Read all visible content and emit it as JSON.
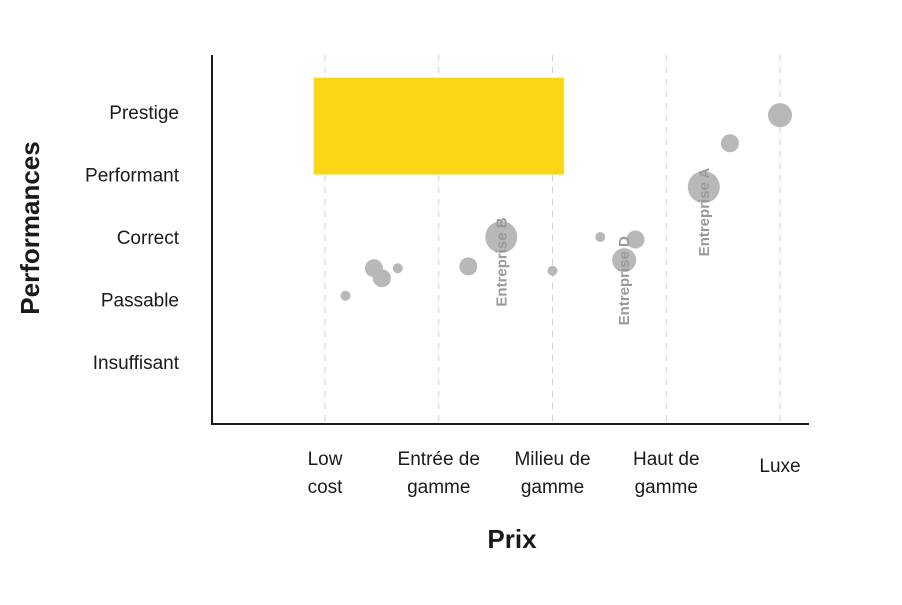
{
  "chart_data": {
    "type": "scatter",
    "title": "",
    "xlabel": "Prix",
    "ylabel": "Performances",
    "x_categories": [
      "Low cost",
      "Entrée de gamme",
      "Milieu de gamme",
      "Haut de gamme",
      "Luxe"
    ],
    "x_tick_lines": [
      [
        "Low",
        "cost"
      ],
      [
        "Entrée de",
        "gamme"
      ],
      [
        "Milieu de",
        "gamme"
      ],
      [
        "Haut de",
        "gamme"
      ],
      [
        "Luxe"
      ]
    ],
    "y_categories": [
      "Insuffisant",
      "Passable",
      "Correct",
      "Performant",
      "Prestige"
    ],
    "xlim": [
      -1,
      4
    ],
    "ylim": [
      -0.8,
      4.2
    ],
    "grid": "vertical dashed",
    "colors": {
      "bubble": "#b8b8b8",
      "highlight": "#fcd615",
      "axis": "#1a1a1a",
      "annotation": "#9a9a9a"
    },
    "highlight_zone": {
      "x_range": [
        -0.1,
        2.1
      ],
      "y_range": [
        3.0,
        4.55
      ]
    },
    "points": [
      {
        "x": 0.18,
        "y": 1.06,
        "size": 1
      },
      {
        "x": 0.43,
        "y": 1.5,
        "size": 2
      },
      {
        "x": 0.5,
        "y": 1.34,
        "size": 2
      },
      {
        "x": 0.64,
        "y": 1.5,
        "size": 1
      },
      {
        "x": 1.26,
        "y": 1.53,
        "size": 2
      },
      {
        "x": 1.55,
        "y": 2.0,
        "size": 4
      },
      {
        "x": 2.0,
        "y": 1.46,
        "size": 1
      },
      {
        "x": 2.42,
        "y": 2.0,
        "size": 1
      },
      {
        "x": 2.63,
        "y": 1.63,
        "size": 3
      },
      {
        "x": 2.73,
        "y": 1.96,
        "size": 2
      },
      {
        "x": 3.33,
        "y": 2.8,
        "size": 4
      },
      {
        "x": 3.56,
        "y": 3.5,
        "size": 2
      },
      {
        "x": 4.0,
        "y": 3.95,
        "size": 3
      }
    ],
    "annotations": [
      {
        "text": "Entreprise B",
        "x": 1.55,
        "y": 1.6
      },
      {
        "text": "Entreprise D",
        "x": 2.63,
        "y": 1.3
      },
      {
        "text": "Entreprise A",
        "x": 3.33,
        "y": 2.4
      }
    ]
  }
}
